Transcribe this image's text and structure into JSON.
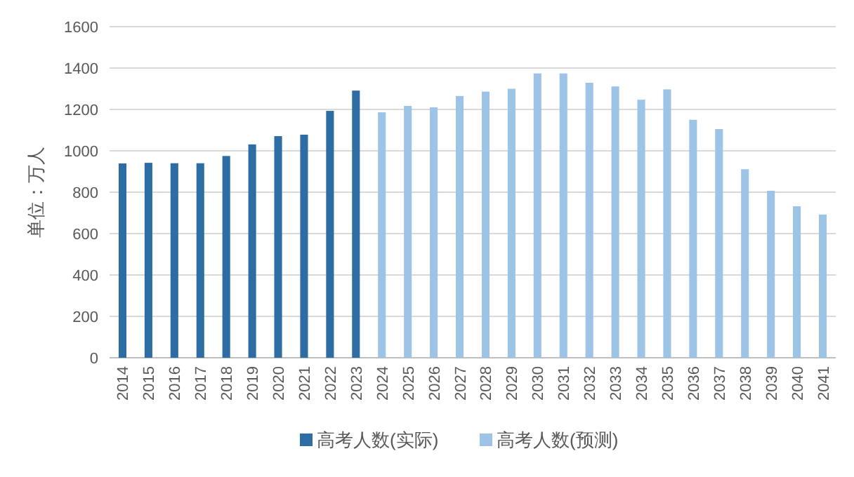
{
  "chart_data": {
    "type": "bar",
    "ylabel": "单位：万人",
    "categories": [
      "2014",
      "2015",
      "2016",
      "2017",
      "2018",
      "2019",
      "2020",
      "2021",
      "2022",
      "2023",
      "2024",
      "2025",
      "2026",
      "2027",
      "2028",
      "2029",
      "2030",
      "2031",
      "2032",
      "2033",
      "2034",
      "2035",
      "2036",
      "2037",
      "2038",
      "2039",
      "2040",
      "2041"
    ],
    "series": [
      {
        "name": "高考人数(实际)",
        "color": "#2e6ca4",
        "values": [
          939,
          942,
          940,
          940,
          975,
          1031,
          1071,
          1078,
          1193,
          1291,
          null,
          null,
          null,
          null,
          null,
          null,
          null,
          null,
          null,
          null,
          null,
          null,
          null,
          null,
          null,
          null,
          null,
          null
        ]
      },
      {
        "name": "高考人数(预测)",
        "color": "#9dc3e6",
        "values": [
          null,
          null,
          null,
          null,
          null,
          null,
          null,
          null,
          null,
          null,
          1186,
          1217,
          1210,
          1265,
          1286,
          1300,
          1374,
          1374,
          1329,
          1311,
          1247,
          1297,
          1150,
          1105,
          911,
          807,
          732,
          692
        ]
      }
    ],
    "ylim": [
      0,
      1600
    ],
    "yticks": [
      0,
      200,
      400,
      600,
      800,
      1000,
      1200,
      1400,
      1600
    ],
    "grid": "y",
    "legend": "bottom"
  }
}
